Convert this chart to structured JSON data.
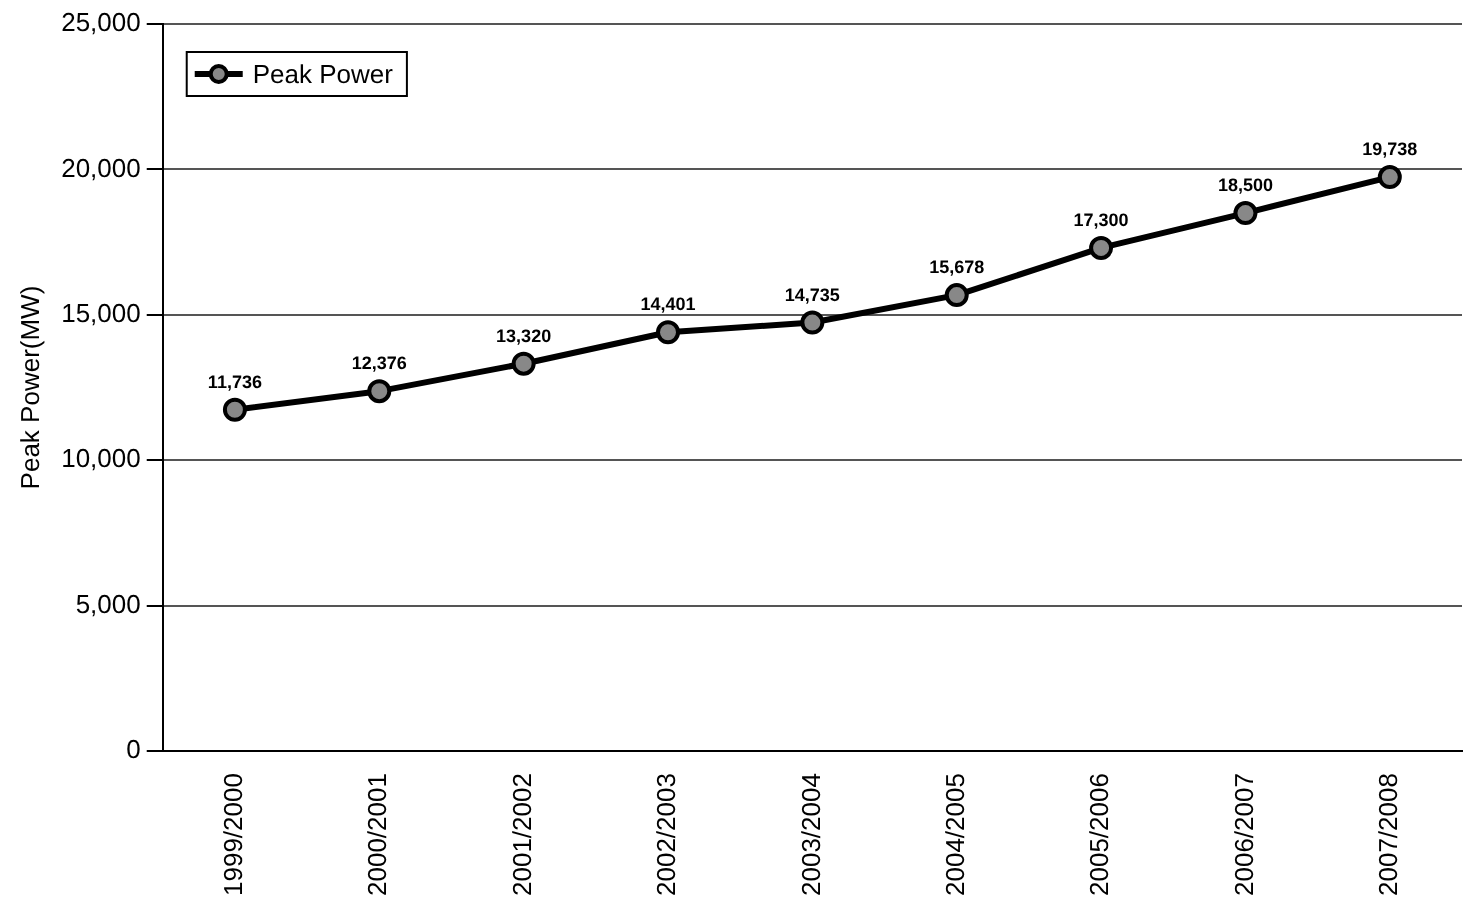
{
  "chart_data": {
    "type": "line",
    "ylabel": "Peak Power(MW)",
    "categories": [
      "1999/2000",
      "2000/2001",
      "2001/2002",
      "2002/2003",
      "2003/2004",
      "2004/2005",
      "2005/2006",
      "2006/2007",
      "2007/2008"
    ],
    "series": [
      {
        "name": "Peak Power",
        "color": "#000000",
        "values": [
          11736,
          12376,
          13320,
          14401,
          14735,
          15678,
          17300,
          18500,
          19738
        ],
        "value_labels": [
          "11,736",
          "12,376",
          "13,320",
          "14,401",
          "14,735",
          "15,678",
          "17,300",
          "18,500",
          "19,738"
        ]
      }
    ],
    "ylim": [
      0,
      25000
    ],
    "yticks": [
      0,
      {
        "value": 5000,
        "label": "5,000"
      },
      {
        "value": 10000,
        "label": "10,000"
      },
      {
        "value": 15000,
        "label": "15,000"
      },
      {
        "value": 20000,
        "label": "20,000"
      },
      {
        "value": 25000,
        "label": "25,000"
      }
    ],
    "grid": "y",
    "legend": "top left",
    "marker": "circle",
    "line_style": "solid"
  }
}
